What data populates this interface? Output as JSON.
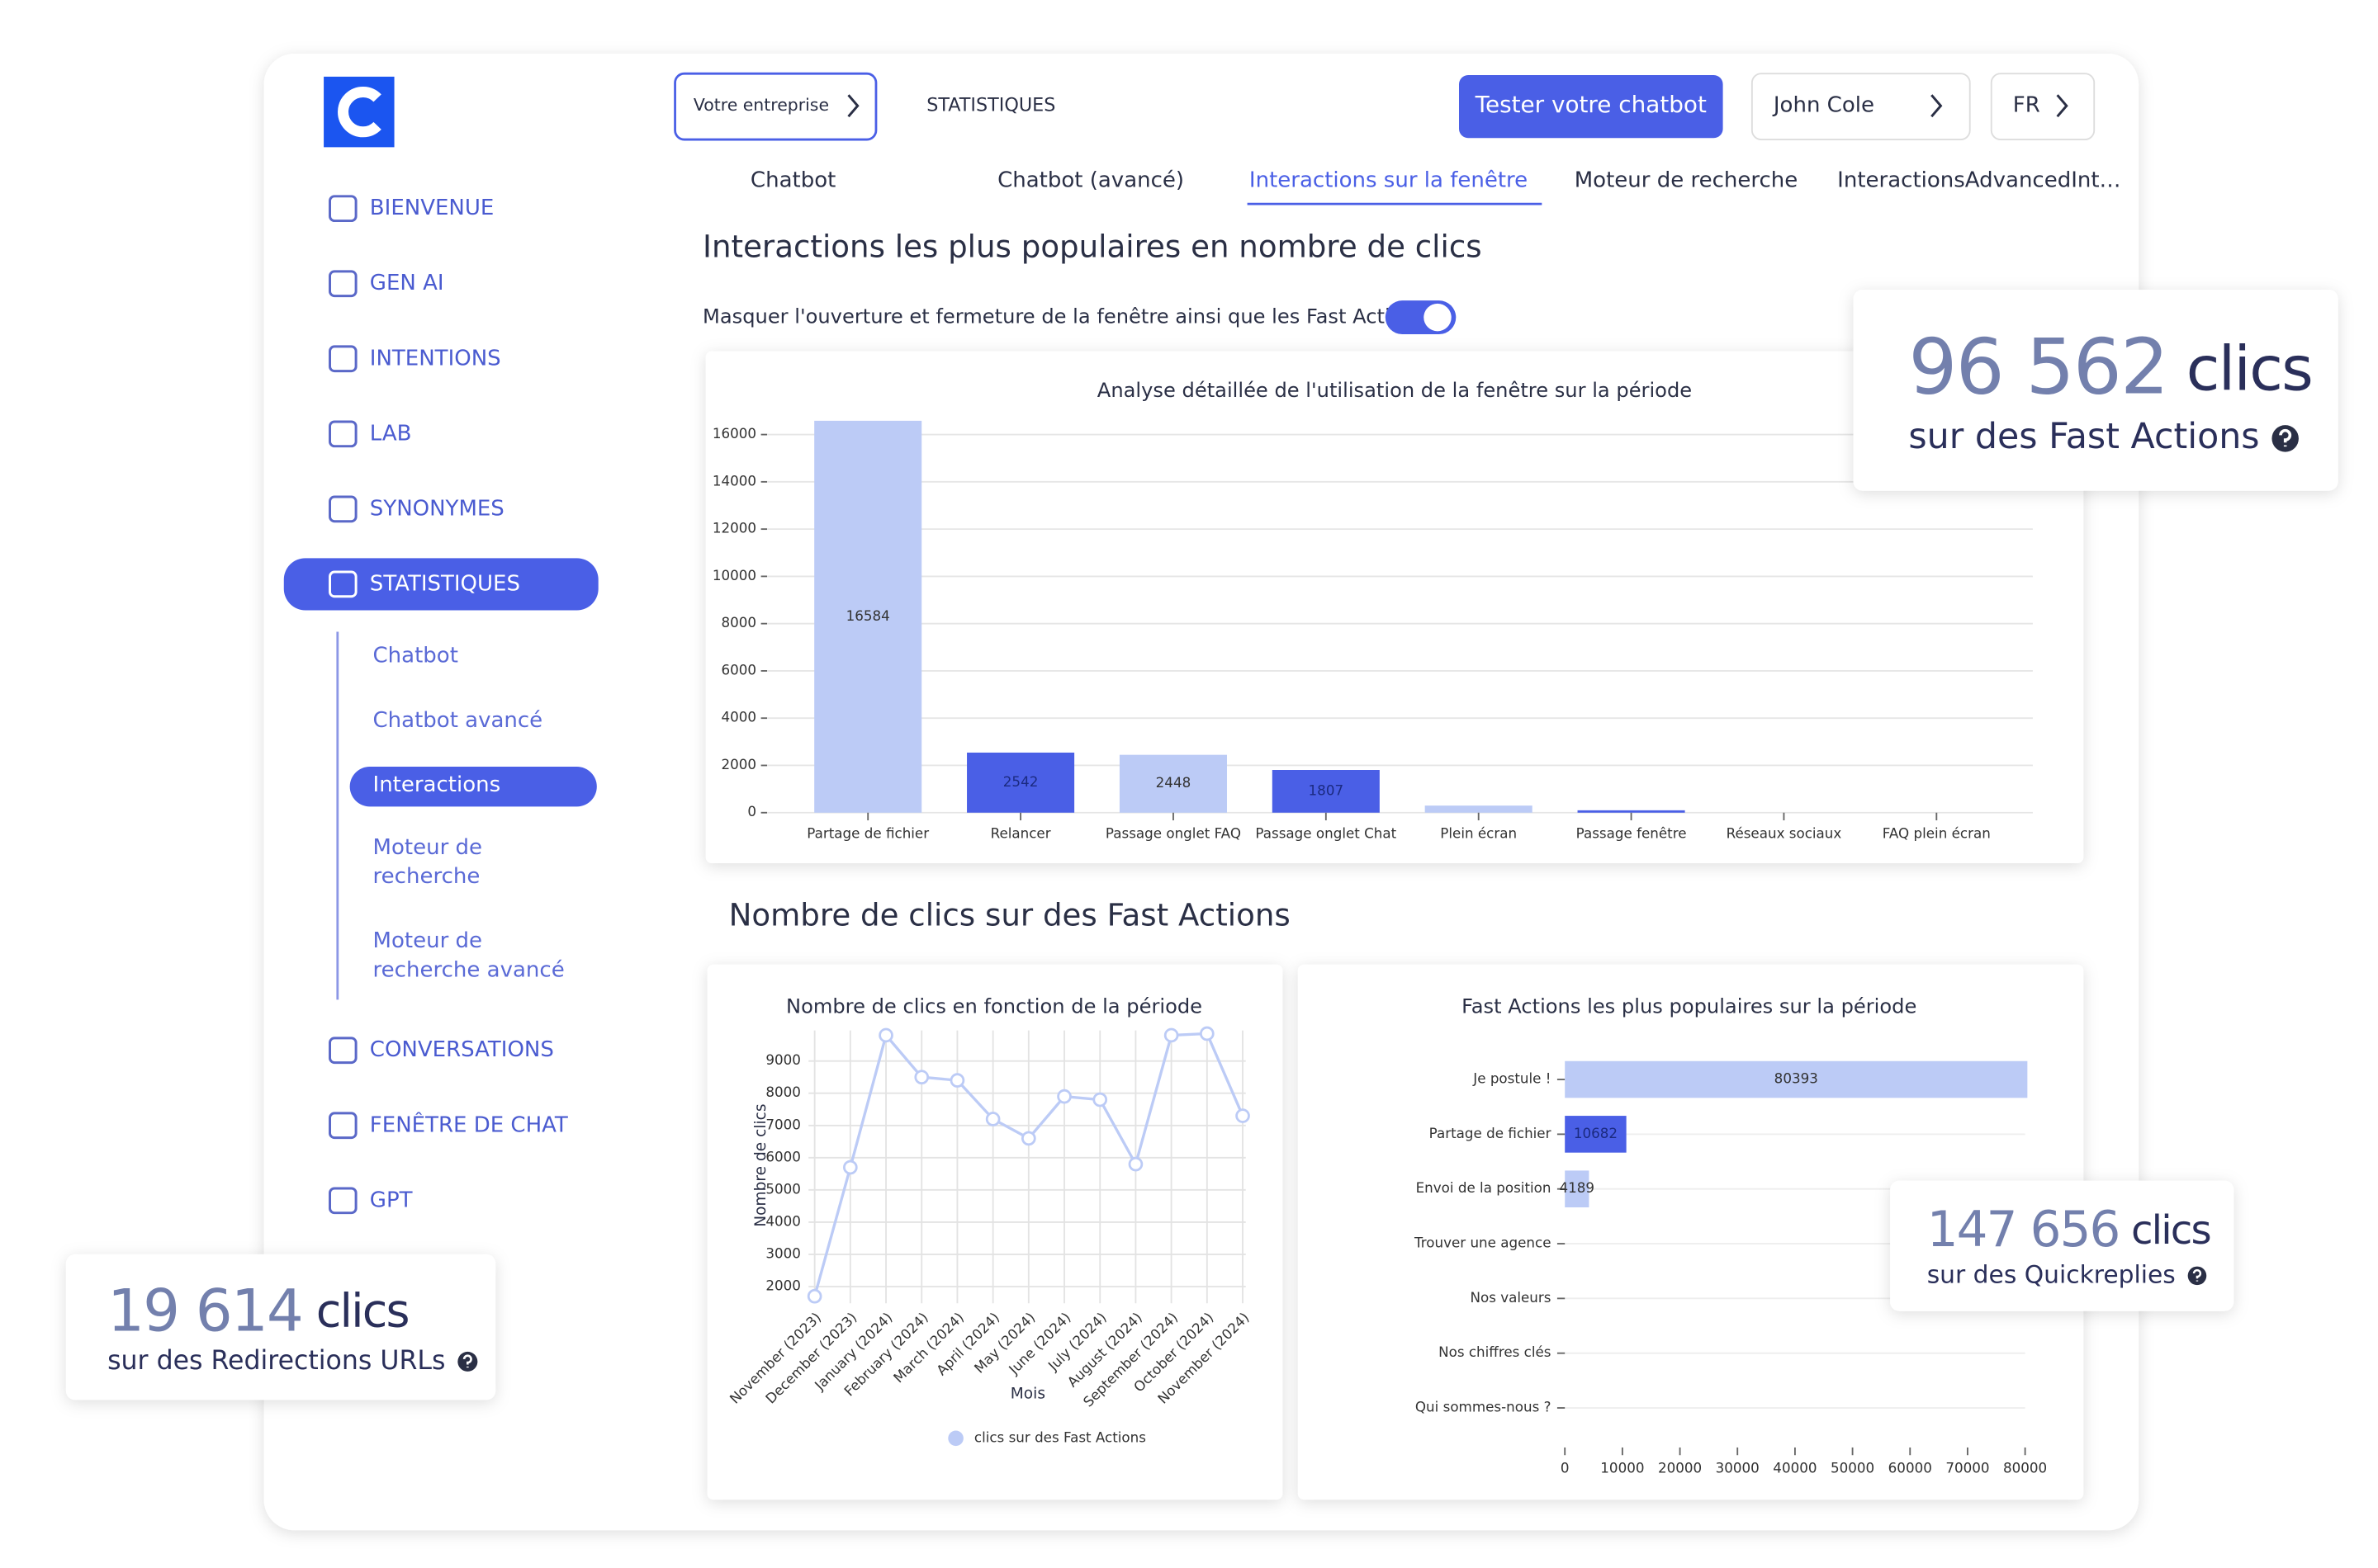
{
  "top": {
    "company": "Votre entreprise",
    "section": "STATISTIQUES",
    "test_button": "Tester votre chatbot",
    "user": "John Cole",
    "lang": "FR"
  },
  "sidebar": {
    "items": [
      "BIENVENUE",
      "GEN AI",
      "INTENTIONS",
      "LAB",
      "SYNONYMES",
      "STATISTIQUES",
      "CONVERSATIONS",
      "FENÊTRE DE CHAT",
      "GPT"
    ],
    "subitems": [
      "Chatbot",
      "Chatbot avancé",
      "Interactions",
      "Moteur de recherche",
      "Moteur de recherche avancé"
    ]
  },
  "tabs": [
    "Chatbot",
    "Chatbot (avancé)",
    "Interactions sur la fenêtre",
    "Moteur de recherche",
    "InteractionsAdvancedInt…"
  ],
  "section1": {
    "title": "Interactions les plus populaires en nombre de clics",
    "toggle_label": "Masquer l'ouverture et fermeture de la fenêtre ainsi que les Fast Actions"
  },
  "section2": {
    "title": "Nombre de clics sur des Fast Actions"
  },
  "kpis": [
    {
      "value": "96 562",
      "unit": "clics",
      "label": "sur des Fast Actions"
    },
    {
      "value": "147 656",
      "unit": "clics",
      "label": "sur des Quickreplies"
    },
    {
      "value": "19 614",
      "unit": "clics",
      "label": "sur des Redirections URLs"
    }
  ],
  "chart_data": [
    {
      "type": "bar",
      "title": "Analyse détaillée de l'utilisation de la fenêtre sur la période",
      "categories": [
        "Partage de fichier",
        "Relancer",
        "Passage onglet FAQ",
        "Passage onglet Chat",
        "Plein écran",
        "Passage fenêtre",
        "Réseaux sociaux",
        "FAQ plein écran"
      ],
      "values": [
        16584,
        2542,
        2448,
        1807,
        300,
        100,
        0,
        0
      ],
      "value_labels": [
        "16584",
        "2542",
        "2448",
        "1807",
        null,
        null,
        null,
        null
      ],
      "colors": [
        "#bccbf6",
        "#4a5fe6",
        "#bccbf6",
        "#4a5fe6",
        "#bccbf6",
        "#4a5fe6",
        "#bccbf6",
        "#4a5fe6"
      ],
      "ylim": [
        0,
        17000
      ],
      "yticks": [
        0,
        2000,
        4000,
        6000,
        8000,
        10000,
        12000,
        14000,
        16000
      ],
      "grid": true
    },
    {
      "type": "line",
      "title": "Nombre de clics en fonction de la période",
      "xlabel": "Mois",
      "ylabel": "Nombre de clics",
      "categories": [
        "November (2023)",
        "December (2023)",
        "January (2024)",
        "February (2024)",
        "March (2024)",
        "April (2024)",
        "May (2024)",
        "June (2024)",
        "July (2024)",
        "August (2024)",
        "September (2024)",
        "October (2024)",
        "November (2024)"
      ],
      "series": [
        {
          "name": "clics sur des Fast Actions",
          "color": "#bccbf6",
          "values": [
            1700,
            5700,
            9800,
            8500,
            8400,
            7200,
            6600,
            7900,
            7800,
            5800,
            9800,
            9850,
            7300
          ]
        }
      ],
      "ylim": [
        1480,
        9950
      ],
      "yticks": [
        2000,
        3000,
        4000,
        5000,
        6000,
        7000,
        8000,
        9000
      ],
      "grid": true,
      "legend": "bottom"
    },
    {
      "type": "hbar",
      "title": "Fast Actions les plus populaires sur la période",
      "categories": [
        "Je postule !",
        "Partage de fichier",
        "Envoi de la position",
        "Trouver une agence",
        "Nos valeurs",
        "Nos chiffres clés",
        "Qui sommes-nous ?"
      ],
      "values": [
        80393,
        10682,
        4189,
        0,
        0,
        0,
        0
      ],
      "value_labels": [
        "80393",
        "10682",
        "4189",
        null,
        null,
        null,
        null
      ],
      "colors": [
        "#bccbf6",
        "#4a5fe6",
        "#bccbf6",
        "#4a5fe6",
        "#bccbf6",
        "#4a5fe6",
        "#bccbf6"
      ],
      "xlim": [
        0,
        80000
      ],
      "xticks": [
        0,
        10000,
        20000,
        30000,
        40000,
        50000,
        60000,
        70000,
        80000
      ],
      "grid": true
    }
  ]
}
